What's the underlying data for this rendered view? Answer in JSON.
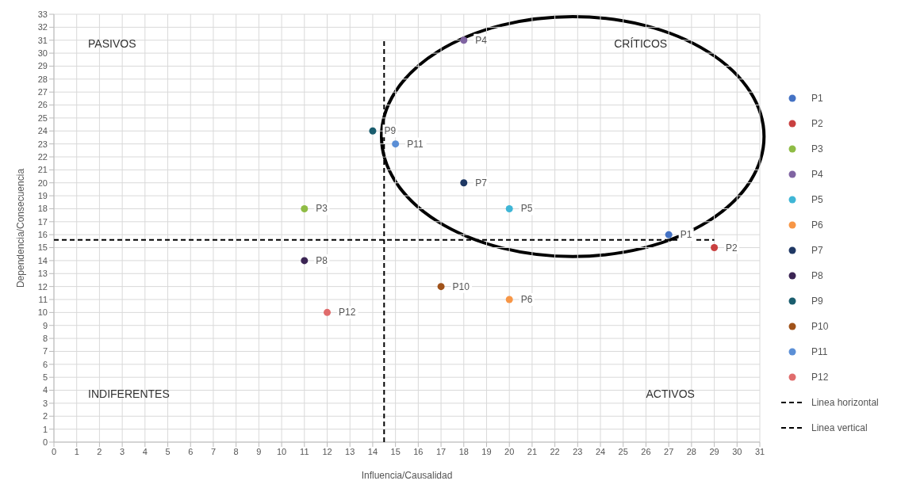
{
  "chart_data": {
    "type": "scatter",
    "xlabel": "Influencia/Causalidad",
    "ylabel": "Dependencia/Consecuencia",
    "xlim": [
      0,
      31
    ],
    "xticks": [
      0,
      1,
      2,
      3,
      4,
      5,
      6,
      7,
      8,
      9,
      10,
      11,
      12,
      13,
      14,
      15,
      16,
      17,
      18,
      19,
      20,
      21,
      22,
      23,
      24,
      25,
      26,
      27,
      28,
      29,
      30,
      31
    ],
    "ylim": [
      0,
      33
    ],
    "yticks": [
      0,
      1,
      2,
      3,
      4,
      5,
      6,
      7,
      8,
      9,
      10,
      11,
      12,
      13,
      14,
      15,
      16,
      17,
      18,
      19,
      20,
      21,
      22,
      23,
      24,
      25,
      26,
      27,
      28,
      29,
      30,
      31,
      32,
      33
    ],
    "grid": true,
    "legend": "right",
    "marker": "circle",
    "annotations": [
      "PASIVOS",
      "CRÍTICOS",
      "INDIFERENTES",
      "ACTIVOS"
    ],
    "series": [
      {
        "name": "P1",
        "color": "#4472c4",
        "x": [
          27
        ],
        "values": [
          16
        ]
      },
      {
        "name": "P2",
        "color": "#c94040",
        "x": [
          29
        ],
        "values": [
          15
        ]
      },
      {
        "name": "P3",
        "color": "#8fbc45",
        "x": [
          11
        ],
        "values": [
          18
        ]
      },
      {
        "name": "P4",
        "color": "#8064a2",
        "x": [
          18
        ],
        "values": [
          31
        ]
      },
      {
        "name": "P5",
        "color": "#3fb6d6",
        "x": [
          20
        ],
        "values": [
          18
        ]
      },
      {
        "name": "P6",
        "color": "#f79646",
        "x": [
          20
        ],
        "values": [
          11
        ]
      },
      {
        "name": "P7",
        "color": "#1f3864",
        "x": [
          18
        ],
        "values": [
          20
        ]
      },
      {
        "name": "P8",
        "color": "#3b2554",
        "x": [
          11
        ],
        "values": [
          14
        ]
      },
      {
        "name": "P9",
        "color": "#1a5d6e",
        "x": [
          14
        ],
        "values": [
          24
        ]
      },
      {
        "name": "P10",
        "color": "#a0521a",
        "x": [
          17
        ],
        "values": [
          12
        ]
      },
      {
        "name": "P11",
        "color": "#5b8fd6",
        "x": [
          15
        ],
        "values": [
          23
        ]
      },
      {
        "name": "P12",
        "color": "#e06c6c",
        "x": [
          12
        ],
        "values": [
          10
        ]
      },
      {
        "name": "Linea horizontal",
        "type": "line",
        "color": "#000000",
        "line_style": "dashed",
        "marker": "none",
        "x": [
          0,
          29
        ],
        "values": [
          15.6,
          15.6
        ]
      },
      {
        "name": "Linea vertical",
        "type": "line",
        "color": "#000000",
        "line_style": "dashed",
        "marker": "none",
        "x": [
          14.5,
          14.5
        ],
        "values": [
          0,
          31
        ]
      }
    ]
  }
}
